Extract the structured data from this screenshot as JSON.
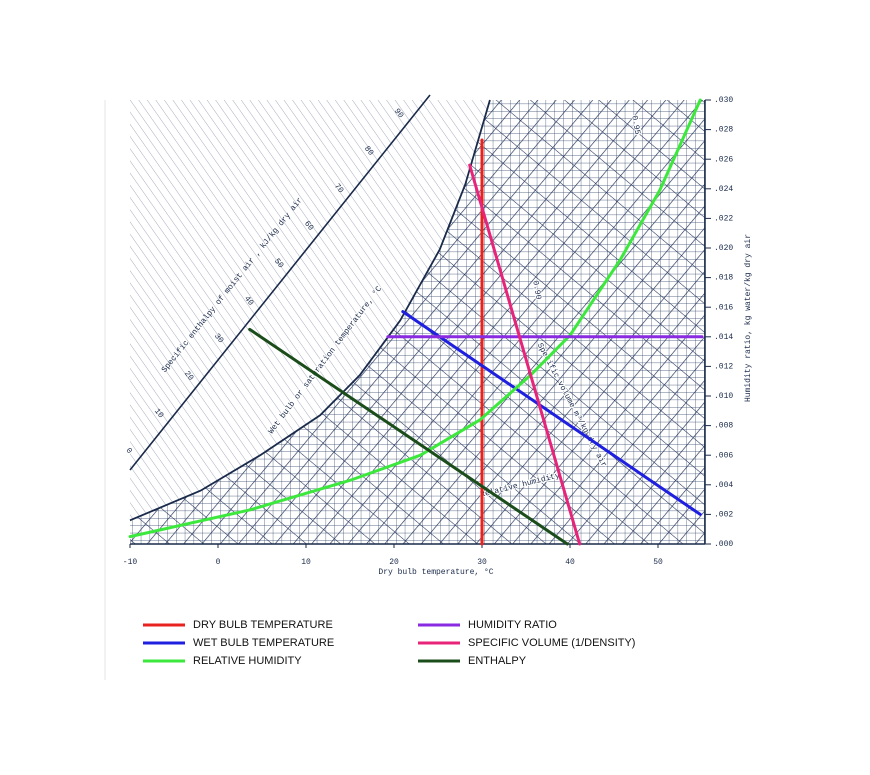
{
  "chart_data": {
    "type": "line",
    "x_label": "Dry bulb temperature, °C",
    "y2_label": "Humidity ratio,  kg water/kg dry air",
    "xlim": [
      -10,
      55
    ],
    "xticks": [
      -10,
      0,
      10,
      20,
      30,
      40,
      50
    ],
    "y2lim": [
      0,
      0.03
    ],
    "y2ticks": [
      {
        "value": 0,
        "label": ".000"
      },
      {
        "value": 0.002,
        "label": ".002"
      },
      {
        "value": 0.004,
        "label": ".004"
      },
      {
        "value": 0.006,
        "label": ".006"
      },
      {
        "value": 0.008,
        "label": ".008"
      },
      {
        "value": 0.01,
        "label": ".010"
      },
      {
        "value": 0.012,
        "label": ".012"
      },
      {
        "value": 0.014,
        "label": ".014"
      },
      {
        "value": 0.016,
        "label": ".016"
      },
      {
        "value": 0.018,
        "label": ".018"
      },
      {
        "value": 0.02,
        "label": ".020"
      },
      {
        "value": 0.022,
        "label": ".022"
      },
      {
        "value": 0.024,
        "label": ".024"
      },
      {
        "value": 0.026,
        "label": ".026"
      },
      {
        "value": 0.028,
        "label": ".028"
      },
      {
        "value": 0.03,
        "label": ".030"
      }
    ],
    "grid": true,
    "saturation": {
      "x": [
        -10,
        -2.0,
        4.8,
        11.6,
        16.1,
        20.7,
        25.2,
        28.1,
        30.9
      ],
      "values": [
        0.0016,
        0.0036,
        0.006,
        0.0087,
        0.0114,
        0.0151,
        0.0199,
        0.0243,
        0.03
      ]
    },
    "enthalpy_scale": {
      "label": "Specific enthalpy of moist air , kJ/kg dry air",
      "ticks": [
        0,
        10,
        20,
        30,
        40,
        50,
        60,
        70,
        80,
        90
      ]
    },
    "annotations": [
      "Wet bulb or saturation temperature, °C",
      "Specific volume m³/kg dry air",
      "Relative humidity",
      "0.90",
      "0.95"
    ],
    "series": [
      {
        "name": "DRY BULB TEMPERATURE",
        "color": "#e8231f",
        "x": [
          30,
          30
        ],
        "values": [
          0.0273,
          0
        ]
      },
      {
        "name": "WET BULB TEMPERATURE",
        "color": "#1f1fe0",
        "x": [
          21.0,
          54.8
        ],
        "values": [
          0.0157,
          0.002
        ]
      },
      {
        "name": "RELATIVE HUMIDITY",
        "color": "#3de83d",
        "x": [
          -10,
          3.6,
          15.0,
          23.0,
          29.8,
          35.5,
          40.0,
          45.7,
          50.2,
          54.8
        ],
        "values": [
          0.0005,
          0.0023,
          0.0043,
          0.006,
          0.0084,
          0.0114,
          0.0141,
          0.0192,
          0.0239,
          0.03
        ]
      },
      {
        "name": "HUMIDITY RATIO",
        "color": "#8a2be2",
        "x": [
          19.3,
          55
        ],
        "values": [
          0.014,
          0.014
        ]
      },
      {
        "name": "SPECIFIC VOLUME (1/DENSITY)",
        "color": "#e8247a",
        "x": [
          28.6,
          41.1
        ],
        "values": [
          0.0256,
          0
        ]
      },
      {
        "name": "ENTHALPY",
        "color": "#1b4d1b",
        "x": [
          3.6,
          39.7
        ],
        "values": [
          0.0145,
          0
        ]
      }
    ]
  }
}
